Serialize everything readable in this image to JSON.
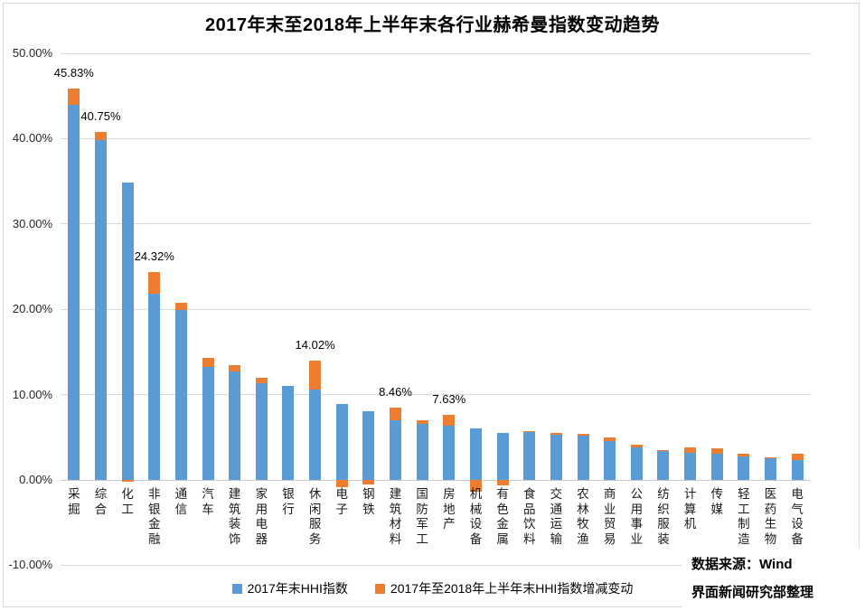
{
  "chart_data": {
    "type": "bar",
    "stacked": true,
    "title": "2017年末至2018年上半年末各行业赫希曼指数变动趋势",
    "categories": [
      "采掘",
      "综合",
      "化工",
      "非银金融",
      "通信",
      "汽车",
      "建筑装饰",
      "家用电器",
      "银行",
      "休闲服务",
      "电子",
      "钢铁",
      "建筑材料",
      "国防军工",
      "房地产",
      "机械设备",
      "有色金属",
      "食品饮料",
      "交通运输",
      "农林牧渔",
      "商业贸易",
      "公用事业",
      "纺织服装",
      "计算机",
      "传媒",
      "轻工制造",
      "医药生物",
      "电气设备"
    ],
    "series": [
      {
        "name": "2017年末HHI指数",
        "color": "#5b9bd5",
        "values": [
          44.0,
          39.8,
          34.8,
          21.8,
          19.95,
          13.25,
          12.7,
          11.3,
          11.05,
          10.55,
          8.9,
          8.05,
          7.0,
          6.55,
          6.4,
          6.05,
          5.5,
          5.6,
          5.3,
          5.16,
          4.6,
          3.81,
          3.36,
          3.18,
          3.07,
          2.72,
          2.57,
          2.3
        ]
      },
      {
        "name": "2017年至2018年上半年末HHI指数增减变动",
        "color": "#ed7d31",
        "values": [
          1.83,
          0.95,
          -0.2,
          2.52,
          0.82,
          1.0,
          0.72,
          0.64,
          0,
          3.47,
          -0.9,
          -0.55,
          1.46,
          0.45,
          1.23,
          -1.35,
          -0.65,
          0.12,
          0.2,
          0.24,
          0.36,
          0.35,
          0.1,
          0.63,
          0.64,
          0.38,
          0.1,
          0.75
        ]
      }
    ],
    "data_labels": {
      "0": "45.83%",
      "1": "40.75%",
      "3": "24.32%",
      "9": "14.02%",
      "12": "8.46%",
      "14": "7.63%"
    },
    "y_ticks": [
      50,
      40,
      30,
      20,
      10,
      0,
      -10
    ],
    "y_tick_labels": [
      "50.00%",
      "40.00%",
      "30.00%",
      "20.00%",
      "10.00%",
      "0.00%",
      "-10.00%"
    ],
    "ylim": [
      -10,
      50
    ],
    "grid": true,
    "legend_position": "bottom",
    "gridline_color": "#d9d9d9"
  },
  "source": {
    "line1": "数据来源：Wind",
    "line2": "界面新闻研究部整理"
  }
}
